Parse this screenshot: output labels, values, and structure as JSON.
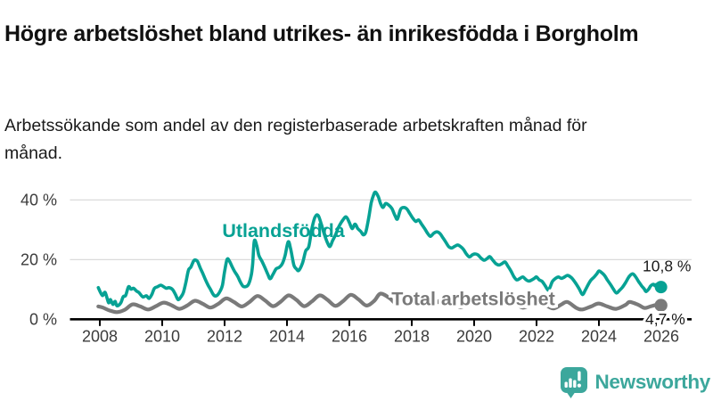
{
  "header": {
    "title": "Högre arbetslöshet bland utrikes- än inrikesfödda i Borgholm",
    "subtitle": "Arbetssökande som andel av den registerbaserade arbetskraften månad för månad."
  },
  "footer": {
    "brand": "Newsworthy",
    "logo_icon": "speech-bubble-bar-chart-icon"
  },
  "colors": {
    "foreign_born_line": "#07a294",
    "total_line": "#7a7a7a",
    "axis": "#000000",
    "gridline": "#dadada",
    "tick_label": "#3c3c3c",
    "value_label": "#1a1a1a",
    "brand_teal": "#3ca79c",
    "background": "#ffffff"
  },
  "chart_data": {
    "type": "line",
    "title": "Högre arbetslöshet bland utrikes- än inrikesfödda i Borgholm",
    "subtitle": "Arbetssökande som andel av den registerbaserade arbetskraften månad för månad.",
    "unit": "%",
    "grid": "horizontal",
    "x_axis": {
      "ticks": [
        2008,
        2010,
        2012,
        2014,
        2016,
        2018,
        2020,
        2022,
        2024,
        2026
      ],
      "range": [
        2007.9,
        2026.95
      ]
    },
    "y_axis": {
      "ticks": [
        0,
        20,
        40
      ],
      "tick_labels": [
        "0 %",
        "20 %",
        "40 %"
      ],
      "range": [
        0,
        45
      ]
    },
    "series": [
      {
        "name": "Utlandsfödda",
        "color": "#07a294",
        "end_label": "10,8 %",
        "end_value": 10.8,
        "points": [
          [
            2007.95,
            10.6
          ],
          [
            2008.08,
            8.0
          ],
          [
            2008.17,
            9.0
          ],
          [
            2008.28,
            5.6
          ],
          [
            2008.34,
            6.6
          ],
          [
            2008.42,
            5.0
          ],
          [
            2008.49,
            6.0
          ],
          [
            2008.55,
            4.5
          ],
          [
            2008.67,
            5.5
          ],
          [
            2008.75,
            7.6
          ],
          [
            2008.83,
            8.0
          ],
          [
            2008.92,
            10.9
          ],
          [
            2009.0,
            10.1
          ],
          [
            2009.08,
            10.4
          ],
          [
            2009.17,
            9.5
          ],
          [
            2009.25,
            9.0
          ],
          [
            2009.38,
            7.5
          ],
          [
            2009.49,
            7.9
          ],
          [
            2009.58,
            7.0
          ],
          [
            2009.67,
            8.4
          ],
          [
            2009.75,
            10.4
          ],
          [
            2009.85,
            10.9
          ],
          [
            2009.95,
            11.4
          ],
          [
            2010.05,
            10.9
          ],
          [
            2010.13,
            10.4
          ],
          [
            2010.22,
            10.6
          ],
          [
            2010.33,
            10.0
          ],
          [
            2010.42,
            8.4
          ],
          [
            2010.51,
            6.6
          ],
          [
            2010.6,
            7.5
          ],
          [
            2010.68,
            9.0
          ],
          [
            2010.76,
            12.4
          ],
          [
            2010.84,
            16.4
          ],
          [
            2010.92,
            17.5
          ],
          [
            2011.0,
            19.4
          ],
          [
            2011.05,
            19.9
          ],
          [
            2011.13,
            19.4
          ],
          [
            2011.21,
            17.4
          ],
          [
            2011.3,
            15.4
          ],
          [
            2011.38,
            13.4
          ],
          [
            2011.47,
            11.4
          ],
          [
            2011.55,
            10.0
          ],
          [
            2011.63,
            8.4
          ],
          [
            2011.7,
            7.8
          ],
          [
            2011.78,
            8.2
          ],
          [
            2011.86,
            9.5
          ],
          [
            2011.93,
            11.4
          ],
          [
            2012.0,
            16.0
          ],
          [
            2012.08,
            20.1
          ],
          [
            2012.16,
            19.4
          ],
          [
            2012.25,
            17.4
          ],
          [
            2012.33,
            15.9
          ],
          [
            2012.42,
            14.4
          ],
          [
            2012.5,
            12.6
          ],
          [
            2012.58,
            11.2
          ],
          [
            2012.66,
            10.9
          ],
          [
            2012.76,
            11.6
          ],
          [
            2012.85,
            14.5
          ],
          [
            2012.9,
            18.5
          ],
          [
            2012.95,
            26.2
          ],
          [
            2013.03,
            24.8
          ],
          [
            2013.1,
            21.4
          ],
          [
            2013.2,
            19.4
          ],
          [
            2013.29,
            17.4
          ],
          [
            2013.38,
            15.2
          ],
          [
            2013.46,
            13.6
          ],
          [
            2013.55,
            15.0
          ],
          [
            2013.65,
            16.9
          ],
          [
            2013.75,
            17.4
          ],
          [
            2013.85,
            18.6
          ],
          [
            2013.94,
            21.4
          ],
          [
            2014.04,
            26.0
          ],
          [
            2014.12,
            23.5
          ],
          [
            2014.22,
            18.2
          ],
          [
            2014.3,
            16.9
          ],
          [
            2014.38,
            16.4
          ],
          [
            2014.5,
            18.9
          ],
          [
            2014.6,
            22.9
          ],
          [
            2014.7,
            24.4
          ],
          [
            2014.8,
            30.5
          ],
          [
            2014.9,
            34.3
          ],
          [
            2015.0,
            34.8
          ],
          [
            2015.1,
            31.9
          ],
          [
            2015.2,
            28.4
          ],
          [
            2015.3,
            25.6
          ],
          [
            2015.38,
            24.4
          ],
          [
            2015.46,
            26.3
          ],
          [
            2015.56,
            28.4
          ],
          [
            2015.66,
            31.0
          ],
          [
            2015.8,
            33.4
          ],
          [
            2015.9,
            34.3
          ],
          [
            2016.0,
            32.4
          ],
          [
            2016.09,
            30.4
          ],
          [
            2016.18,
            31.9
          ],
          [
            2016.27,
            30.4
          ],
          [
            2016.37,
            29.4
          ],
          [
            2016.45,
            28.3
          ],
          [
            2016.53,
            29.3
          ],
          [
            2016.62,
            34.0
          ],
          [
            2016.7,
            39.0
          ],
          [
            2016.78,
            41.8
          ],
          [
            2016.84,
            42.6
          ],
          [
            2016.93,
            41.0
          ],
          [
            2017.0,
            38.8
          ],
          [
            2017.08,
            37.5
          ],
          [
            2017.16,
            38.8
          ],
          [
            2017.26,
            38.3
          ],
          [
            2017.36,
            37.2
          ],
          [
            2017.46,
            34.8
          ],
          [
            2017.54,
            33.6
          ],
          [
            2017.64,
            36.8
          ],
          [
            2017.74,
            37.5
          ],
          [
            2017.84,
            37.0
          ],
          [
            2017.94,
            35.4
          ],
          [
            2018.04,
            33.8
          ],
          [
            2018.13,
            32.8
          ],
          [
            2018.22,
            33.3
          ],
          [
            2018.32,
            31.8
          ],
          [
            2018.42,
            30.3
          ],
          [
            2018.51,
            28.8
          ],
          [
            2018.6,
            27.8
          ],
          [
            2018.7,
            28.8
          ],
          [
            2018.8,
            29.3
          ],
          [
            2018.9,
            28.8
          ],
          [
            2019.0,
            27.3
          ],
          [
            2019.09,
            25.9
          ],
          [
            2019.18,
            24.4
          ],
          [
            2019.28,
            23.9
          ],
          [
            2019.37,
            24.4
          ],
          [
            2019.47,
            24.9
          ],
          [
            2019.56,
            24.4
          ],
          [
            2019.66,
            23.4
          ],
          [
            2019.75,
            21.9
          ],
          [
            2019.85,
            20.9
          ],
          [
            2019.94,
            21.6
          ],
          [
            2020.04,
            21.9
          ],
          [
            2020.13,
            21.5
          ],
          [
            2020.23,
            20.4
          ],
          [
            2020.32,
            19.8
          ],
          [
            2020.42,
            20.4
          ],
          [
            2020.5,
            21.0
          ],
          [
            2020.6,
            19.8
          ],
          [
            2020.7,
            18.6
          ],
          [
            2020.8,
            18.2
          ],
          [
            2020.9,
            18.7
          ],
          [
            2020.99,
            19.2
          ],
          [
            2021.09,
            17.7
          ],
          [
            2021.18,
            16.2
          ],
          [
            2021.28,
            14.2
          ],
          [
            2021.37,
            13.2
          ],
          [
            2021.47,
            13.7
          ],
          [
            2021.56,
            14.2
          ],
          [
            2021.66,
            13.3
          ],
          [
            2021.75,
            12.8
          ],
          [
            2021.85,
            13.2
          ],
          [
            2021.94,
            13.8
          ],
          [
            2022.0,
            14.2
          ],
          [
            2022.09,
            13.2
          ],
          [
            2022.18,
            12.7
          ],
          [
            2022.28,
            11.2
          ],
          [
            2022.37,
            9.8
          ],
          [
            2022.43,
            10.7
          ],
          [
            2022.51,
            12.7
          ],
          [
            2022.61,
            13.7
          ],
          [
            2022.7,
            14.2
          ],
          [
            2022.8,
            13.7
          ],
          [
            2022.9,
            14.2
          ],
          [
            2022.99,
            14.7
          ],
          [
            2023.09,
            14.2
          ],
          [
            2023.18,
            13.2
          ],
          [
            2023.28,
            11.7
          ],
          [
            2023.37,
            10.2
          ],
          [
            2023.47,
            8.3
          ],
          [
            2023.56,
            9.7
          ],
          [
            2023.66,
            11.7
          ],
          [
            2023.75,
            13.2
          ],
          [
            2023.85,
            14.2
          ],
          [
            2023.93,
            15.2
          ],
          [
            2024.0,
            16.2
          ],
          [
            2024.08,
            15.7
          ],
          [
            2024.18,
            14.7
          ],
          [
            2024.27,
            13.2
          ],
          [
            2024.37,
            11.7
          ],
          [
            2024.46,
            10.2
          ],
          [
            2024.56,
            8.8
          ],
          [
            2024.66,
            9.7
          ],
          [
            2024.75,
            10.7
          ],
          [
            2024.85,
            12.2
          ],
          [
            2024.93,
            13.7
          ],
          [
            2025.0,
            14.7
          ],
          [
            2025.09,
            15.2
          ],
          [
            2025.18,
            14.2
          ],
          [
            2025.27,
            12.7
          ],
          [
            2025.37,
            11.2
          ],
          [
            2025.45,
            10.2
          ],
          [
            2025.51,
            9.3
          ],
          [
            2025.6,
            10.2
          ],
          [
            2025.66,
            11.2
          ],
          [
            2025.75,
            11.7
          ],
          [
            2025.8,
            11.2
          ],
          [
            2025.85,
            11.7
          ],
          [
            2025.9,
            11.2
          ],
          [
            2025.99,
            10.8
          ]
        ]
      },
      {
        "name": "Total arbetslöshet",
        "color": "#7a7a7a",
        "end_label": "4,7 %",
        "end_value": 4.7,
        "points": [
          [
            2007.95,
            4.3
          ],
          [
            2008.1,
            3.9
          ],
          [
            2008.3,
            3.0
          ],
          [
            2008.55,
            2.4
          ],
          [
            2008.8,
            3.2
          ],
          [
            2009.05,
            5.0
          ],
          [
            2009.3,
            4.3
          ],
          [
            2009.55,
            3.3
          ],
          [
            2009.8,
            4.4
          ],
          [
            2010.05,
            5.6
          ],
          [
            2010.3,
            4.7
          ],
          [
            2010.55,
            3.5
          ],
          [
            2010.8,
            4.6
          ],
          [
            2011.05,
            6.2
          ],
          [
            2011.3,
            5.2
          ],
          [
            2011.55,
            3.9
          ],
          [
            2011.8,
            5.2
          ],
          [
            2012.05,
            7.0
          ],
          [
            2012.3,
            5.8
          ],
          [
            2012.55,
            4.3
          ],
          [
            2012.8,
            5.8
          ],
          [
            2013.05,
            7.8
          ],
          [
            2013.3,
            6.3
          ],
          [
            2013.55,
            4.4
          ],
          [
            2013.8,
            5.9
          ],
          [
            2014.05,
            8.0
          ],
          [
            2014.3,
            6.5
          ],
          [
            2014.55,
            4.4
          ],
          [
            2014.8,
            6.0
          ],
          [
            2015.05,
            8.0
          ],
          [
            2015.3,
            6.5
          ],
          [
            2015.55,
            4.5
          ],
          [
            2015.8,
            6.1
          ],
          [
            2016.05,
            8.2
          ],
          [
            2016.3,
            6.6
          ],
          [
            2016.55,
            4.6
          ],
          [
            2016.8,
            6.2
          ],
          [
            2017.0,
            8.6
          ],
          [
            2017.3,
            7.0
          ],
          [
            2017.55,
            4.8
          ],
          [
            2017.8,
            6.0
          ],
          [
            2018.05,
            7.6
          ],
          [
            2018.3,
            6.2
          ],
          [
            2018.55,
            4.4
          ],
          [
            2018.8,
            5.6
          ],
          [
            2019.05,
            7.0
          ],
          [
            2019.3,
            5.8
          ],
          [
            2019.55,
            4.1
          ],
          [
            2019.8,
            5.2
          ],
          [
            2020.05,
            6.6
          ],
          [
            2020.3,
            6.0
          ],
          [
            2020.55,
            4.9
          ],
          [
            2020.8,
            5.5
          ],
          [
            2021.05,
            6.4
          ],
          [
            2021.3,
            5.5
          ],
          [
            2021.55,
            3.9
          ],
          [
            2021.8,
            4.8
          ],
          [
            2022.05,
            5.6
          ],
          [
            2022.3,
            4.7
          ],
          [
            2022.55,
            3.6
          ],
          [
            2022.8,
            5.0
          ],
          [
            2022.99,
            5.8
          ],
          [
            2023.28,
            3.8
          ],
          [
            2023.47,
            3.3
          ],
          [
            2023.75,
            4.3
          ],
          [
            2023.99,
            5.3
          ],
          [
            2024.27,
            4.3
          ],
          [
            2024.55,
            3.5
          ],
          [
            2024.85,
            4.8
          ],
          [
            2024.99,
            5.8
          ],
          [
            2025.27,
            4.8
          ],
          [
            2025.46,
            3.8
          ],
          [
            2025.65,
            4.3
          ],
          [
            2025.84,
            4.8
          ],
          [
            2025.99,
            4.7
          ]
        ]
      }
    ]
  }
}
